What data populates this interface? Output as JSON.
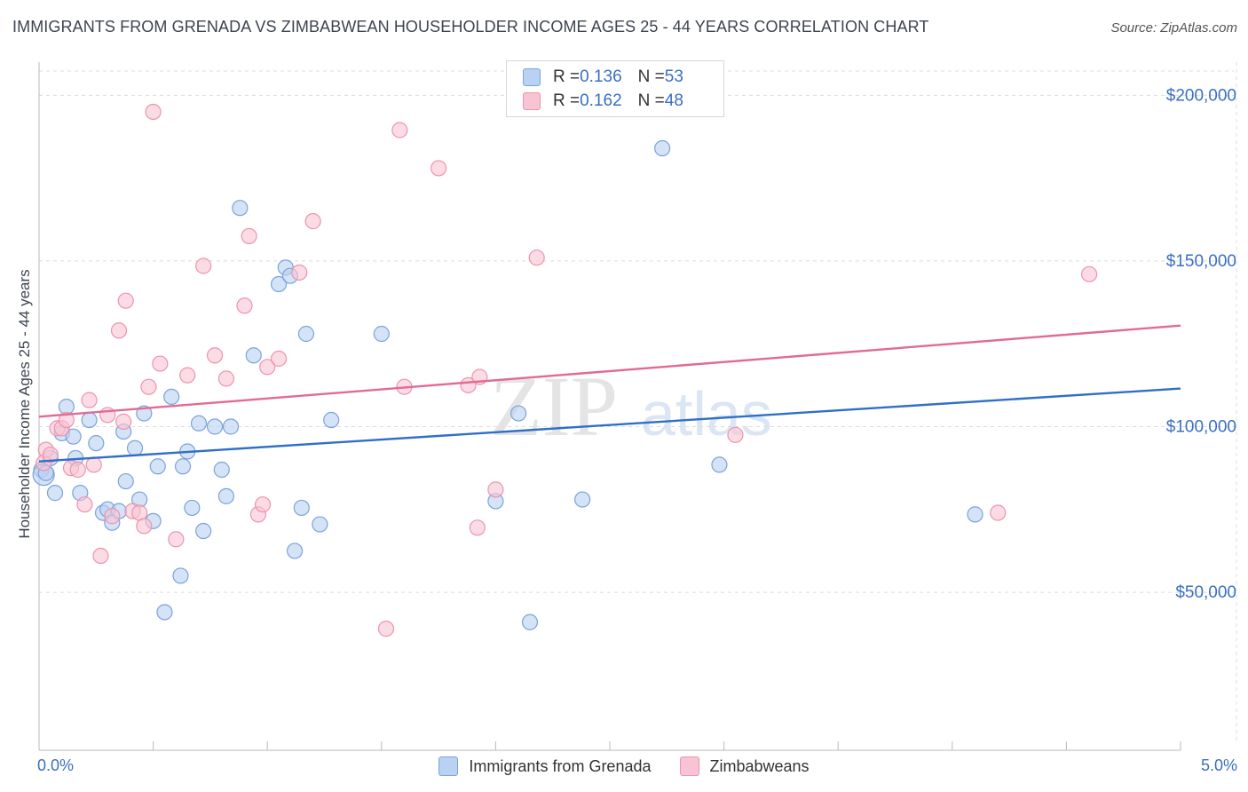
{
  "title": "IMMIGRANTS FROM GRENADA VS ZIMBABWEAN HOUSEHOLDER INCOME AGES 25 - 44 YEARS CORRELATION CHART",
  "source": "Source: ZipAtlas.com",
  "watermark": {
    "part1": "ZIP",
    "part2": "atlas"
  },
  "legend": {
    "rows": [
      {
        "r_label": "R = ",
        "r_value": "0.136",
        "n_label": "N = ",
        "n_value": "53"
      },
      {
        "r_label": "R = ",
        "r_value": "0.162",
        "n_label": "N = ",
        "n_value": "48"
      }
    ]
  },
  "colors": {
    "blue_fill": "#b9d1f2",
    "blue_stroke": "#7aa3da",
    "blue_line": "#2f6fc9",
    "pink_fill": "#f8c4d4",
    "pink_stroke": "#ee92ae",
    "pink_line": "#e26a93",
    "axis_label": "#3a6fc2",
    "grid": "#dcdcdc"
  },
  "chart_data": {
    "type": "scatter",
    "title": "IMMIGRANTS FROM GRENADA VS ZIMBABWEAN HOUSEHOLDER INCOME AGES 25 - 44 YEARS CORRELATION CHART",
    "xlabel": "",
    "ylabel": "Householder Income Ages 25 - 44 years",
    "xlim": [
      0,
      5
    ],
    "ylim": [
      5000,
      210000
    ],
    "x_tick_labels": [
      "0.0%",
      "5.0%"
    ],
    "y_ticks": [
      50000,
      100000,
      150000,
      200000
    ],
    "y_tick_labels": [
      "$50,000",
      "$100,000",
      "$150,000",
      "$200,000"
    ],
    "grid": true,
    "legend_position": "top-center",
    "series": [
      {
        "name": "Immigrants from Grenada",
        "color": "blue",
        "trend": {
          "x": [
            0,
            5
          ],
          "y": [
            89500,
            111500
          ]
        },
        "points": [
          [
            0.01,
            87000
          ],
          [
            0.02,
            85500
          ],
          [
            0.03,
            86000
          ],
          [
            0.05,
            90500
          ],
          [
            0.07,
            80000
          ],
          [
            0.1,
            98000
          ],
          [
            0.12,
            106000
          ],
          [
            0.15,
            97000
          ],
          [
            0.16,
            90500
          ],
          [
            0.18,
            80000
          ],
          [
            0.22,
            102000
          ],
          [
            0.25,
            95000
          ],
          [
            0.28,
            74000
          ],
          [
            0.3,
            75000
          ],
          [
            0.32,
            71000
          ],
          [
            0.35,
            74500
          ],
          [
            0.37,
            98500
          ],
          [
            0.38,
            83500
          ],
          [
            0.42,
            93500
          ],
          [
            0.44,
            78000
          ],
          [
            0.46,
            104000
          ],
          [
            0.5,
            71500
          ],
          [
            0.52,
            88000
          ],
          [
            0.55,
            44000
          ],
          [
            0.58,
            109000
          ],
          [
            0.62,
            55000
          ],
          [
            0.63,
            88000
          ],
          [
            0.65,
            92500
          ],
          [
            0.67,
            75500
          ],
          [
            0.7,
            101000
          ],
          [
            0.72,
            68500
          ],
          [
            0.77,
            100000
          ],
          [
            0.8,
            87000
          ],
          [
            0.82,
            79000
          ],
          [
            0.84,
            100000
          ],
          [
            0.88,
            166000
          ],
          [
            0.94,
            121500
          ],
          [
            1.05,
            143000
          ],
          [
            1.08,
            148000
          ],
          [
            1.1,
            145500
          ],
          [
            1.12,
            62500
          ],
          [
            1.15,
            75500
          ],
          [
            1.17,
            128000
          ],
          [
            1.23,
            70500
          ],
          [
            1.28,
            102000
          ],
          [
            1.5,
            128000
          ],
          [
            2.0,
            77500
          ],
          [
            2.1,
            104000
          ],
          [
            2.15,
            41000
          ],
          [
            2.38,
            78000
          ],
          [
            2.73,
            184000
          ],
          [
            2.98,
            88500
          ],
          [
            4.1,
            73500
          ]
        ]
      },
      {
        "name": "Zimbabweans",
        "color": "pink",
        "trend": {
          "x": [
            0,
            5
          ],
          "y": [
            103000,
            130500
          ]
        },
        "points": [
          [
            0.02,
            89000
          ],
          [
            0.03,
            93000
          ],
          [
            0.05,
            91500
          ],
          [
            0.08,
            99500
          ],
          [
            0.1,
            99500
          ],
          [
            0.12,
            102000
          ],
          [
            0.14,
            87500
          ],
          [
            0.17,
            87000
          ],
          [
            0.2,
            76500
          ],
          [
            0.22,
            108000
          ],
          [
            0.24,
            88500
          ],
          [
            0.27,
            61000
          ],
          [
            0.3,
            103500
          ],
          [
            0.32,
            73000
          ],
          [
            0.35,
            129000
          ],
          [
            0.37,
            101500
          ],
          [
            0.38,
            138000
          ],
          [
            0.41,
            74500
          ],
          [
            0.44,
            74000
          ],
          [
            0.46,
            70000
          ],
          [
            0.48,
            112000
          ],
          [
            0.5,
            195000
          ],
          [
            0.53,
            119000
          ],
          [
            0.6,
            66000
          ],
          [
            0.65,
            115500
          ],
          [
            0.72,
            148500
          ],
          [
            0.77,
            121500
          ],
          [
            0.82,
            114500
          ],
          [
            0.9,
            136500
          ],
          [
            0.92,
            157500
          ],
          [
            0.96,
            73500
          ],
          [
            0.98,
            76500
          ],
          [
            1.0,
            118000
          ],
          [
            1.05,
            120500
          ],
          [
            1.14,
            146500
          ],
          [
            1.2,
            162000
          ],
          [
            1.52,
            39000
          ],
          [
            1.58,
            189500
          ],
          [
            1.6,
            112000
          ],
          [
            1.75,
            178000
          ],
          [
            1.88,
            112500
          ],
          [
            1.92,
            69500
          ],
          [
            1.93,
            115000
          ],
          [
            2.0,
            81000
          ],
          [
            2.18,
            151000
          ],
          [
            3.05,
            97500
          ],
          [
            4.2,
            74000
          ],
          [
            4.6,
            146000
          ]
        ]
      }
    ]
  }
}
